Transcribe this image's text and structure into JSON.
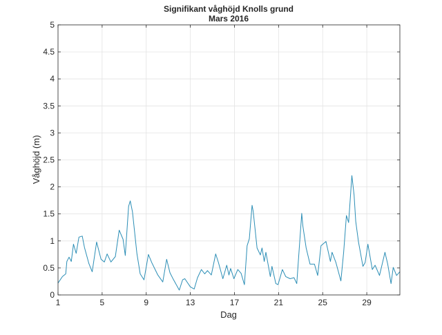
{
  "chart_data": {
    "type": "line",
    "title": "Signifikant våghöjd Knolls grund",
    "subtitle": "Mars 2016",
    "xlabel": "Dag",
    "ylabel": "Våghöjd (m)",
    "xlim": [
      1,
      32
    ],
    "ylim": [
      0,
      5
    ],
    "xticks": [
      1,
      5,
      9,
      13,
      17,
      21,
      25,
      29
    ],
    "yticks": [
      0,
      0.5,
      1,
      1.5,
      2,
      2.5,
      3,
      3.5,
      4,
      4.5,
      5
    ],
    "ytick_labels": [
      "0",
      "0.5",
      "1",
      "1.5",
      "2",
      "2.5",
      "3",
      "3.5",
      "4",
      "4.5",
      "5"
    ],
    "grid": true,
    "series": [
      {
        "name": "Våghöjd",
        "color": "#2a8db5",
        "x": [
          1,
          1.4,
          1.7,
          1.8,
          2.0,
          2.2,
          2.4,
          2.65,
          2.9,
          3.2,
          3.4,
          3.8,
          4.1,
          4.5,
          4.9,
          5.2,
          5.45,
          5.8,
          6.2,
          6.55,
          6.9,
          7.1,
          7.4,
          7.55,
          7.75,
          8.15,
          8.45,
          8.8,
          9.2,
          9.5,
          10.05,
          10.5,
          10.85,
          11.15,
          11.45,
          12.0,
          12.3,
          12.5,
          13.0,
          13.35,
          13.65,
          14.0,
          14.3,
          14.55,
          14.9,
          15.3,
          15.55,
          15.95,
          16.3,
          16.5,
          16.65,
          16.95,
          17.3,
          17.6,
          17.9,
          18.15,
          18.35,
          18.6,
          18.7,
          18.85,
          19.05,
          19.35,
          19.5,
          19.7,
          19.85,
          20.25,
          20.4,
          20.75,
          20.95,
          21.35,
          21.65,
          22.05,
          22.4,
          22.65,
          23.1,
          23.2,
          23.5,
          23.85,
          24.25,
          24.55,
          24.85,
          25.3,
          25.7,
          25.85,
          26.2,
          26.65,
          26.9,
          27.15,
          27.35,
          27.65,
          27.85,
          28.0,
          28.25,
          28.65,
          28.85,
          29.1,
          29.5,
          29.75,
          30.15,
          30.45,
          30.65,
          30.9,
          31.2,
          31.4,
          31.7,
          32
        ],
        "y": [
          0.22,
          0.34,
          0.39,
          0.62,
          0.7,
          0.62,
          0.94,
          0.77,
          1.07,
          1.09,
          0.88,
          0.58,
          0.43,
          0.98,
          0.66,
          0.61,
          0.76,
          0.61,
          0.71,
          1.2,
          1.03,
          0.73,
          1.64,
          1.74,
          1.54,
          0.77,
          0.39,
          0.28,
          0.75,
          0.6,
          0.37,
          0.24,
          0.66,
          0.41,
          0.29,
          0.09,
          0.28,
          0.3,
          0.15,
          0.11,
          0.32,
          0.47,
          0.39,
          0.45,
          0.37,
          0.76,
          0.6,
          0.3,
          0.55,
          0.37,
          0.49,
          0.3,
          0.47,
          0.4,
          0.19,
          0.91,
          1.04,
          1.66,
          1.55,
          1.26,
          0.87,
          0.74,
          0.87,
          0.62,
          0.79,
          0.34,
          0.53,
          0.21,
          0.19,
          0.47,
          0.34,
          0.3,
          0.32,
          0.21,
          1.51,
          1.28,
          0.87,
          0.57,
          0.57,
          0.36,
          0.91,
          0.99,
          0.62,
          0.79,
          0.6,
          0.26,
          0.79,
          1.47,
          1.34,
          2.21,
          1.85,
          1.36,
          0.98,
          0.53,
          0.6,
          0.94,
          0.47,
          0.55,
          0.36,
          0.62,
          0.79,
          0.57,
          0.21,
          0.51,
          0.36,
          0.43
        ]
      }
    ]
  }
}
